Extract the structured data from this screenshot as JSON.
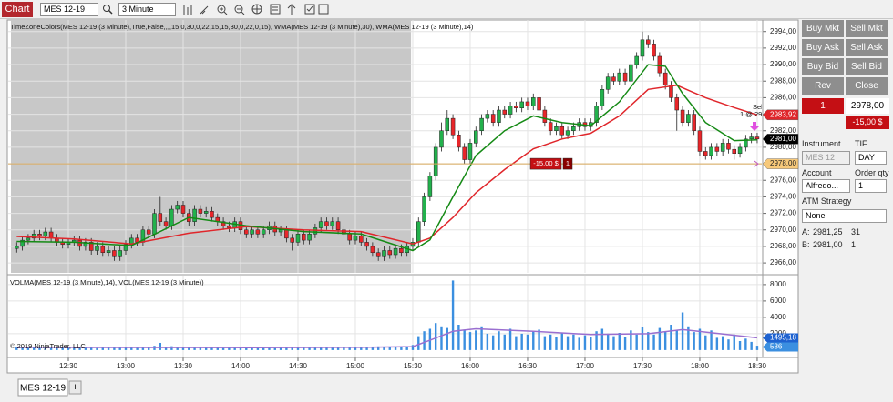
{
  "toolbar": {
    "tab": "Chart",
    "instrument": "MES 12-19",
    "interval": "3 Minute"
  },
  "chart_data": [
    {
      "type": "candlestick",
      "title": "TimeZoneColors(MES 12-19 (3 Minute),True,False,,,,15,0,30,0,22,15,15,30,0,22,0,15), WMA(MES 12-19 (3 Minute),30), WMA(MES 12-19 (3 Minute),14)",
      "open": [
        2967.75,
        2968,
        2968.75,
        2969,
        2969.5,
        2969.25,
        2969.75,
        2969,
        2968.5,
        2968.25,
        2968.5,
        2968.75,
        2968,
        2968.5,
        2967.5,
        2968,
        2967.25,
        2967.5,
        2966.75,
        2967.5,
        2968.25,
        2969,
        2968.5,
        2970,
        2969.5,
        2972,
        2971,
        2970.5,
        2972.5,
        2973,
        2972,
        2971,
        2972.5,
        2972,
        2972.25,
        2971.5,
        2971,
        2970.5,
        2970.25,
        2971,
        2970,
        2969.5,
        2970,
        2969.5,
        2970,
        2970.5,
        2969.75,
        2970,
        2969,
        2968.5,
        2969.5,
        2968.75,
        2969.5,
        2970.25,
        2971,
        2970.5,
        2971,
        2970,
        2969.5,
        2968.75,
        2969.25,
        2968.5,
        2968,
        2967.25,
        2966.75,
        2967.5,
        2967,
        2967.75,
        2967.25,
        2968,
        2968.5,
        2971,
        2974,
        2976.5,
        2980,
        2982,
        2983.5,
        2981.5,
        2980,
        2978.5,
        2980.5,
        2982,
        2983.5,
        2984,
        2983,
        2984.5,
        2984,
        2985,
        2984.75,
        2985.5,
        2985,
        2986,
        2984.5,
        2983,
        2982,
        2982.5,
        2981.5,
        2982,
        2982.5,
        2983,
        2982.5,
        2983,
        2985,
        2987,
        2988.5,
        2988,
        2989,
        2988,
        2990,
        2991,
        2993,
        2992.5,
        2991,
        2989,
        2987.5,
        2986,
        2984.5,
        2983,
        2984,
        2982,
        2979.5,
        2979,
        2980,
        2979.5,
        2980.5,
        2979.75,
        2979.25,
        2980,
        2981,
        2981.25
      ],
      "high": [
        2968.5,
        2969.25,
        2969.5,
        2970,
        2970,
        2970.25,
        2970.25,
        2969.5,
        2969,
        2969,
        2969.25,
        2969.25,
        2969,
        2969,
        2968.5,
        2968.5,
        2968,
        2968,
        2968,
        2968.75,
        2969.5,
        2969.5,
        2970.5,
        2970.5,
        2972.5,
        2974,
        2971.5,
        2973,
        2973.5,
        2973.5,
        2972.5,
        2973,
        2973,
        2972.75,
        2972.75,
        2972,
        2971.5,
        2971,
        2971.5,
        2971.5,
        2970.5,
        2970.5,
        2970.5,
        2970.5,
        2971,
        2971,
        2970.5,
        2970.5,
        2969.5,
        2970,
        2970,
        2970,
        2970.75,
        2971.5,
        2971.5,
        2971.5,
        2971.5,
        2970.5,
        2970,
        2969.75,
        2969.75,
        2969,
        2968.5,
        2967.75,
        2968,
        2968,
        2968.25,
        2968.25,
        2968.5,
        2969,
        2971.5,
        2974.5,
        2977,
        2980.5,
        2983,
        2984.5,
        2984,
        2982,
        2980.5,
        2981,
        2982.5,
        2984,
        2984.5,
        2984.5,
        2985,
        2985,
        2985.5,
        2985.5,
        2986,
        2986,
        2986.5,
        2986.5,
        2985,
        2983.5,
        2983,
        2983,
        2982.5,
        2983,
        2983.5,
        2983.5,
        2983.5,
        2985.5,
        2987.5,
        2989,
        2989,
        2989.5,
        2989.5,
        2990.5,
        2991.5,
        2994,
        2993.5,
        2993,
        2991.5,
        2989.5,
        2988,
        2986.5,
        2985,
        2984.5,
        2984.5,
        2982.5,
        2980,
        2980.5,
        2980.5,
        2981,
        2981,
        2980.25,
        2980.5,
        2981.5,
        2981.75,
        2981.75
      ],
      "low": [
        2967.25,
        2967.5,
        2968.25,
        2968.5,
        2968.75,
        2968.75,
        2968.5,
        2968,
        2967.75,
        2967.75,
        2968,
        2967.5,
        2967.5,
        2967,
        2967,
        2966.75,
        2966.75,
        2966.25,
        2966.25,
        2967,
        2967.75,
        2968,
        2968,
        2969,
        2969,
        2970.5,
        2970,
        2970,
        2972,
        2971.5,
        2970.5,
        2970.5,
        2971.5,
        2971.5,
        2971,
        2970.5,
        2970,
        2969.75,
        2969.75,
        2969.5,
        2969,
        2969,
        2969,
        2969,
        2969.5,
        2969.25,
        2969.25,
        2968.5,
        2967.5,
        2968,
        2968.25,
        2968.25,
        2969,
        2969.75,
        2970,
        2970,
        2969.5,
        2969,
        2968.25,
        2968.25,
        2968,
        2967.5,
        2966.75,
        2966.25,
        2966.25,
        2966.5,
        2966.5,
        2966.75,
        2966.75,
        2967.5,
        2968,
        2970.5,
        2973.5,
        2976,
        2979.5,
        2981.5,
        2981,
        2979.5,
        2978,
        2978,
        2980,
        2981.5,
        2983,
        2982.5,
        2982.5,
        2983.5,
        2983.5,
        2984.25,
        2984.25,
        2984.5,
        2984.5,
        2984,
        2982.5,
        2981.5,
        2981.5,
        2981,
        2981,
        2981.5,
        2982,
        2982,
        2982,
        2982.5,
        2984.5,
        2986.5,
        2987.5,
        2987.5,
        2987.5,
        2987.5,
        2989.5,
        2990.5,
        2992,
        2990.5,
        2988.5,
        2987,
        2985.5,
        2982,
        2982.5,
        2982.5,
        2981.5,
        2979,
        2978.5,
        2978.5,
        2979,
        2979,
        2979.25,
        2978.5,
        2978.75,
        2979.5,
        2980.5,
        2980.5
      ],
      "close": [
        2968,
        2968.75,
        2969,
        2969.5,
        2969.25,
        2969.75,
        2969,
        2968.5,
        2968.25,
        2968.5,
        2968.75,
        2968,
        2968.5,
        2967.5,
        2968,
        2967.25,
        2967.5,
        2966.75,
        2967.5,
        2968.25,
        2969,
        2968.5,
        2970,
        2969.5,
        2972,
        2971,
        2970.5,
        2972.5,
        2973,
        2972,
        2971,
        2972.5,
        2972,
        2972.25,
        2971.5,
        2971,
        2970.5,
        2970.25,
        2971,
        2970,
        2969.5,
        2970,
        2969.5,
        2970,
        2970.5,
        2969.75,
        2970,
        2969,
        2968.5,
        2969.5,
        2968.75,
        2969.5,
        2970.25,
        2971,
        2970.5,
        2971,
        2970,
        2969.5,
        2968.75,
        2969.25,
        2968.5,
        2968,
        2967.25,
        2966.75,
        2967.5,
        2967,
        2967.75,
        2967.25,
        2968,
        2968.5,
        2971,
        2974,
        2976.5,
        2980,
        2982,
        2983.5,
        2981.5,
        2980,
        2978.5,
        2980.5,
        2982,
        2983.5,
        2984,
        2983,
        2984.5,
        2984,
        2985,
        2984.75,
        2985.5,
        2985,
        2986,
        2984.5,
        2983,
        2982,
        2982.5,
        2981.5,
        2982,
        2982.5,
        2983,
        2982.5,
        2983,
        2985,
        2987,
        2988.5,
        2988,
        2989,
        2988,
        2990,
        2991,
        2993,
        2992.5,
        2991,
        2989,
        2987.5,
        2986,
        2984.5,
        2983,
        2984,
        2982,
        2979.5,
        2979,
        2980,
        2979.5,
        2980.5,
        2979.75,
        2979.25,
        2980,
        2981,
        2981.25,
        2981
      ],
      "up_color": "#22b14c",
      "down_color": "#e8262a",
      "series": [
        {
          "color": "#e0262b",
          "x": [
            0,
            10,
            20,
            30,
            40,
            50,
            60,
            69,
            72,
            76,
            80,
            85,
            90,
            95,
            100,
            105,
            110,
            115,
            120,
            125,
            129
          ],
          "values": [
            2969.2,
            2968.9,
            2968.3,
            2969.6,
            2970.4,
            2970,
            2969.8,
            2968.3,
            2969,
            2971.5,
            2974.5,
            2977.3,
            2979.8,
            2981,
            2981.7,
            2983.8,
            2987,
            2987.5,
            2986,
            2984.8,
            2983.92
          ]
        },
        {
          "color": "#158a15",
          "x": [
            0,
            10,
            20,
            30,
            40,
            50,
            60,
            69,
            72,
            76,
            80,
            85,
            90,
            95,
            100,
            105,
            110,
            113,
            116,
            120,
            125,
            129
          ],
          "values": [
            2968.6,
            2968.5,
            2968.1,
            2971.5,
            2970.5,
            2969.8,
            2969.5,
            2967.5,
            2968.8,
            2974,
            2979,
            2982,
            2983.8,
            2983,
            2982.6,
            2985.5,
            2990,
            2989.8,
            2986.5,
            2983,
            2980.8,
            2980.9
          ]
        }
      ],
      "xlim": [
        -1,
        129.8
      ],
      "ylim": [
        2964.8,
        2995.4
      ],
      "yticks": [
        {
          "value": 2994,
          "label": "2994,00"
        },
        {
          "value": 2992,
          "label": "2992,00"
        },
        {
          "value": 2990,
          "label": "2990,00"
        },
        {
          "value": 2988,
          "label": "2988,00"
        },
        {
          "value": 2986,
          "label": "2986,00"
        },
        {
          "value": 2984,
          "label": "2984,00"
        },
        {
          "value": 2982,
          "label": "2982,00"
        },
        {
          "value": 2980,
          "label": "2980,00"
        },
        {
          "value": 2978,
          "label": "2978,00"
        },
        {
          "value": 2976,
          "label": "2976,00"
        },
        {
          "value": 2974,
          "label": "2974,00"
        },
        {
          "value": 2972,
          "label": "2972,00"
        },
        {
          "value": 2970,
          "label": "2970,00"
        },
        {
          "value": 2968,
          "label": "2968,00"
        },
        {
          "value": 2966,
          "label": "2966,00"
        }
      ],
      "grid": true,
      "shade": {
        "xlim": [
          -1,
          68.7
        ],
        "color": "#c8c8c8"
      },
      "axis_markers": [
        {
          "value": 2983.92,
          "label": "2983,92",
          "color": "#e0262b"
        },
        {
          "value": 2981,
          "label": "2981,00",
          "color": "#000000"
        },
        {
          "value": 2978,
          "label": "2978,00",
          "color": "#f7c97a"
        }
      ],
      "order_line": {
        "value": 2978,
        "color": "#d8a85a",
        "pnl": "-15,00 $",
        "qty": 1
      },
      "execution": {
        "label": "Sell",
        "detail": "1 @ 2978,00"
      }
    },
    {
      "type": "bar",
      "title": "VOLMA(MES 12-19 (3 Minute),14), VOL(MES 12-19 (3 Minute))",
      "values": [
        420,
        310,
        280,
        350,
        260,
        300,
        240,
        290,
        330,
        270,
        250,
        310,
        280,
        360,
        240,
        300,
        270,
        390,
        340,
        280,
        300,
        260,
        410,
        290,
        520,
        880,
        350,
        470,
        390,
        330,
        310,
        420,
        290,
        260,
        330,
        280,
        250,
        300,
        270,
        320,
        280,
        250,
        300,
        260,
        290,
        240,
        280,
        330,
        410,
        300,
        290,
        270,
        330,
        360,
        300,
        280,
        320,
        290,
        350,
        300,
        330,
        370,
        420,
        450,
        380,
        340,
        390,
        360,
        480,
        620,
        1700,
        2300,
        2600,
        3300,
        2900,
        2700,
        8500,
        3100,
        2500,
        2200,
        2400,
        2900,
        2000,
        1800,
        2300,
        1900,
        2600,
        1700,
        2000,
        1900,
        2300,
        2500,
        1700,
        1900,
        1600,
        2100,
        1700,
        1900,
        1500,
        1800,
        1600,
        2300,
        2600,
        2000,
        1700,
        2100,
        1600,
        2400,
        1900,
        2800,
        2200,
        1900,
        2700,
        2300,
        3100,
        2400,
        4600,
        2900,
        2200,
        2600,
        1800,
        2400,
        1500,
        1700,
        1300,
        1900,
        1100,
        1400,
        1000,
        536
      ],
      "color": "#3b8fe0",
      "series": [
        {
          "color": "#9a6fd0",
          "x": [
            0,
            20,
            40,
            60,
            69,
            72,
            76,
            80,
            90,
            100,
            110,
            116,
            120,
            129
          ],
          "values": [
            330,
            320,
            300,
            330,
            420,
            1200,
            2300,
            2600,
            2300,
            1900,
            2000,
            2500,
            2200,
            1495.18
          ],
          "value_labels": [
            null,
            null,
            null,
            null,
            null,
            null,
            null,
            null,
            null,
            null,
            null,
            null,
            null,
            "1495,18"
          ]
        }
      ],
      "xlim": [
        -1,
        129.8
      ],
      "xticks": [
        {
          "value": 9,
          "label": "12:30"
        },
        {
          "value": 19,
          "label": "13:00"
        },
        {
          "value": 29,
          "label": "13:30"
        },
        {
          "value": 39,
          "label": "14:00"
        },
        {
          "value": 49,
          "label": "14:30"
        },
        {
          "value": 59,
          "label": "15:00"
        },
        {
          "value": 69,
          "label": "15:30"
        },
        {
          "value": 79,
          "label": "16:00"
        },
        {
          "value": 89,
          "label": "16:30"
        },
        {
          "value": 99,
          "label": "17:00"
        },
        {
          "value": 109,
          "label": "17:30"
        },
        {
          "value": 119,
          "label": "18:00"
        },
        {
          "value": 129,
          "label": "18:30"
        }
      ],
      "ylim": [
        -900,
        9100
      ],
      "yticks": [
        8000,
        6000,
        4000,
        2000
      ],
      "grid": true,
      "marker_color": "#1e62d0",
      "annotation": "© 2019 NinjaTrader, LLC"
    }
  ],
  "order_panel": {
    "buttons": [
      "Buy Mkt",
      "Sell Mkt",
      "Buy Ask",
      "Sell Ask",
      "Buy Bid",
      "Sell Bid",
      "Rev",
      "Close"
    ],
    "position": {
      "qty": 1,
      "avg_price": "2978,00",
      "pnl": "-15,00 $"
    },
    "instrument_label": "Instrument",
    "instrument": "MES 12",
    "tif_label": "TIF",
    "tif": "DAY",
    "account_label": "Account",
    "account": "Alfredo...",
    "qty_label": "Order qty",
    "qty": 1,
    "atm_label": "ATM Strategy",
    "atm": "None",
    "ask": {
      "label": "A:",
      "price": "2981,25",
      "size": 31
    },
    "bid": {
      "label": "B:",
      "price": "2981,00",
      "size": 1
    }
  },
  "tabs": {
    "active": "MES 12-19",
    "add": "+"
  }
}
